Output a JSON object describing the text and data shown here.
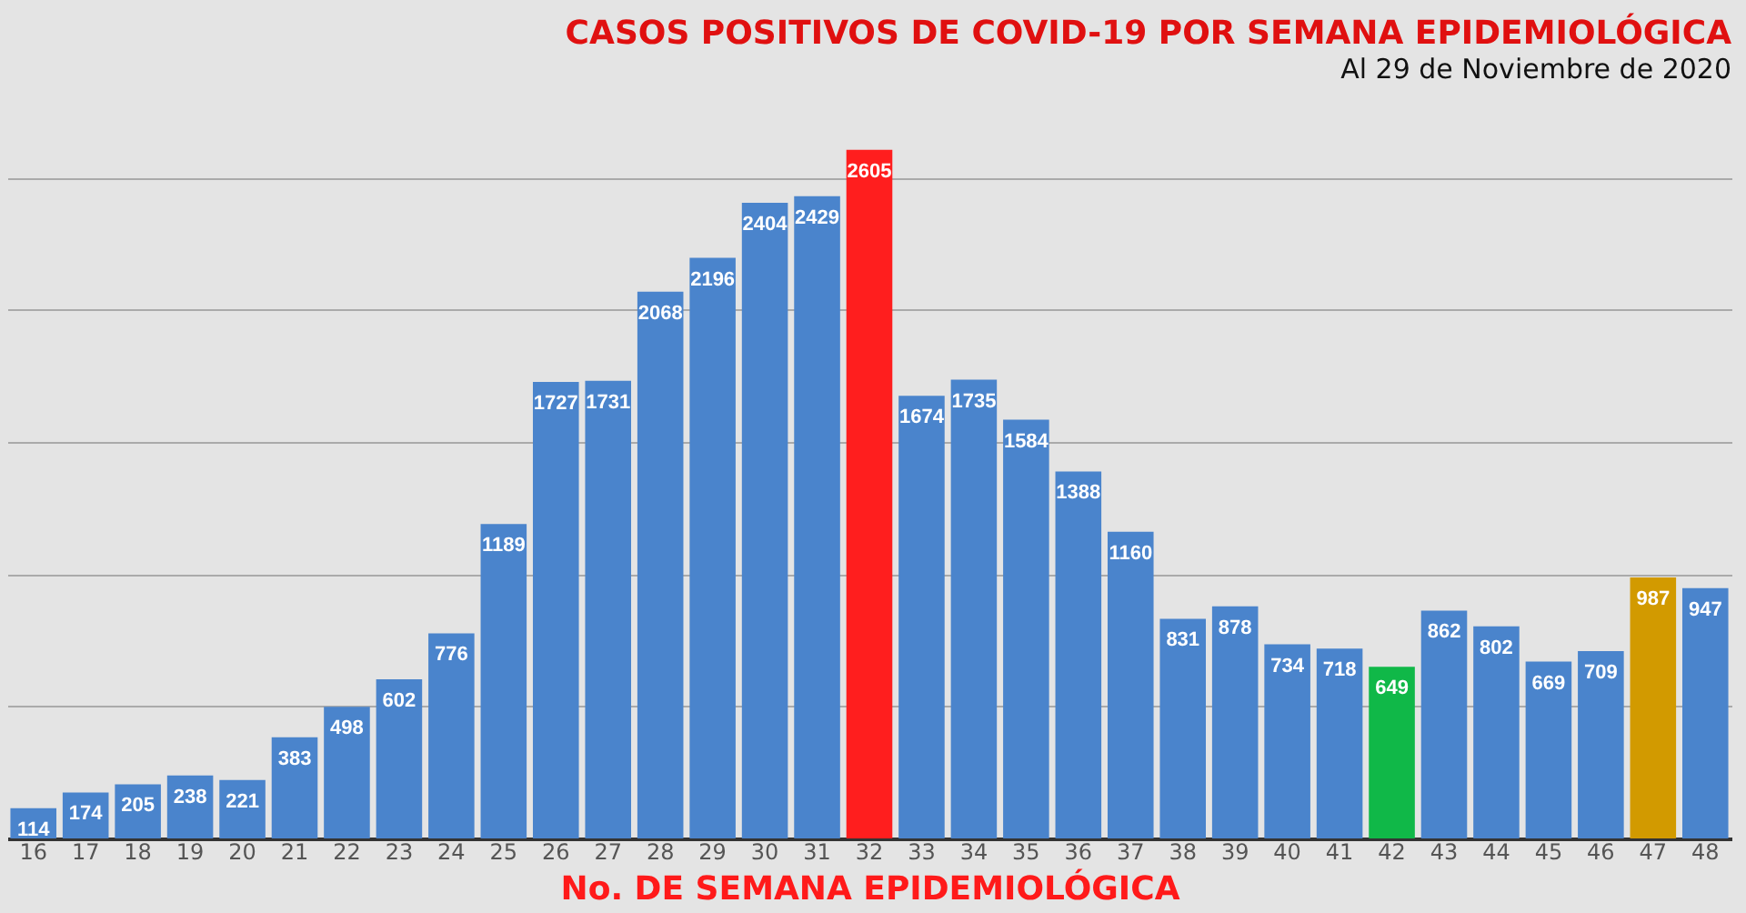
{
  "chart_data": {
    "type": "bar",
    "title": "CASOS POSITIVOS DE COVID-19 POR SEMANA EPIDEMIOLÓGICA",
    "subtitle": "Al 29 de Noviembre de 2020",
    "xlabel": "No. DE SEMANA EPIDEMIOLÓGICA",
    "categories": [
      "16",
      "17",
      "18",
      "19",
      "20",
      "21",
      "22",
      "23",
      "24",
      "25",
      "26",
      "27",
      "28",
      "29",
      "30",
      "31",
      "32",
      "33",
      "34",
      "35",
      "36",
      "37",
      "38",
      "39",
      "40",
      "41",
      "42",
      "43",
      "44",
      "45",
      "46",
      "47",
      "48"
    ],
    "values": [
      114,
      174,
      205,
      238,
      221,
      383,
      498,
      602,
      776,
      1189,
      1727,
      1731,
      2068,
      2196,
      2404,
      2429,
      2605,
      1674,
      1735,
      1584,
      1388,
      1160,
      831,
      878,
      734,
      718,
      649,
      862,
      802,
      669,
      709,
      987,
      947
    ],
    "colors": [
      "#4a84cc",
      "#4a84cc",
      "#4a84cc",
      "#4a84cc",
      "#4a84cc",
      "#4a84cc",
      "#4a84cc",
      "#4a84cc",
      "#4a84cc",
      "#4a84cc",
      "#4a84cc",
      "#4a84cc",
      "#4a84cc",
      "#4a84cc",
      "#4a84cc",
      "#4a84cc",
      "#ff1e1e",
      "#4a84cc",
      "#4a84cc",
      "#4a84cc",
      "#4a84cc",
      "#4a84cc",
      "#4a84cc",
      "#4a84cc",
      "#4a84cc",
      "#4a84cc",
      "#10b848",
      "#4a84cc",
      "#4a84cc",
      "#4a84cc",
      "#4a84cc",
      "#d29a00",
      "#4a84cc"
    ],
    "yticks": [
      {
        "value": 0,
        "label": null
      },
      {
        "value": 500,
        "label": null
      },
      {
        "value": 1000,
        "label": null
      },
      {
        "value": 1500,
        "label": null
      },
      {
        "value": 2000,
        "label": null
      },
      {
        "value": 2500,
        "label": null
      }
    ],
    "grid": "y",
    "tick_labels": "x",
    "data_labels": true
  }
}
